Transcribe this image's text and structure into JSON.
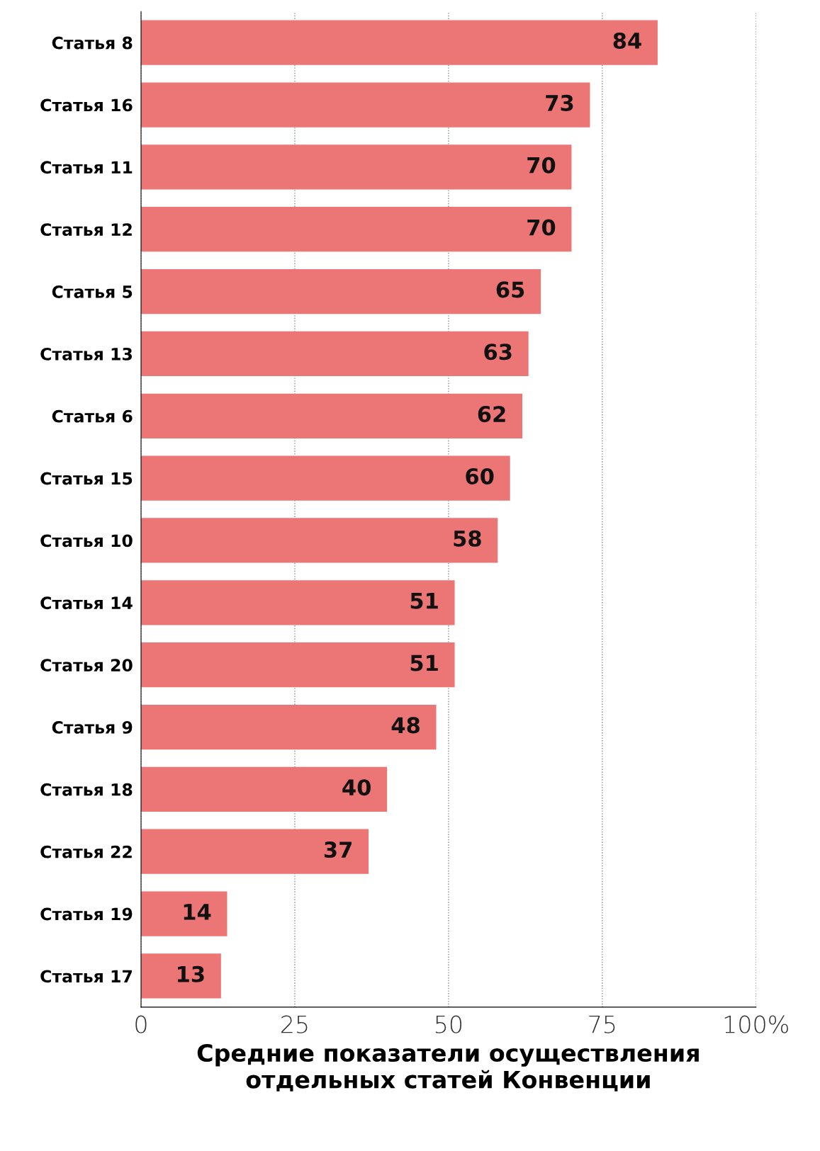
{
  "chart_data": {
    "type": "bar",
    "orientation": "horizontal",
    "xlabel": "Средние показатели осуществления\nотдельных статей Конвенции",
    "categories": [
      "Статья 8",
      "Статья 16",
      "Статья 11",
      "Статья 12",
      "Статья 5",
      "Статья 13",
      "Статья 6",
      "Статья 15",
      "Статья 10",
      "Статья 14",
      "Статья 20",
      "Статья 9",
      "Статья 18",
      "Статья 22",
      "Статья 19",
      "Статья 17"
    ],
    "values": [
      84,
      73,
      70,
      70,
      65,
      63,
      62,
      60,
      58,
      51,
      51,
      48,
      40,
      37,
      14,
      13
    ],
    "color": "#ec7576",
    "xlim": [
      0,
      100
    ],
    "xticks": [
      0,
      25,
      50,
      75,
      {
        "value": 100,
        "label": "100%"
      }
    ],
    "grid": "x",
    "data_labels": true
  }
}
